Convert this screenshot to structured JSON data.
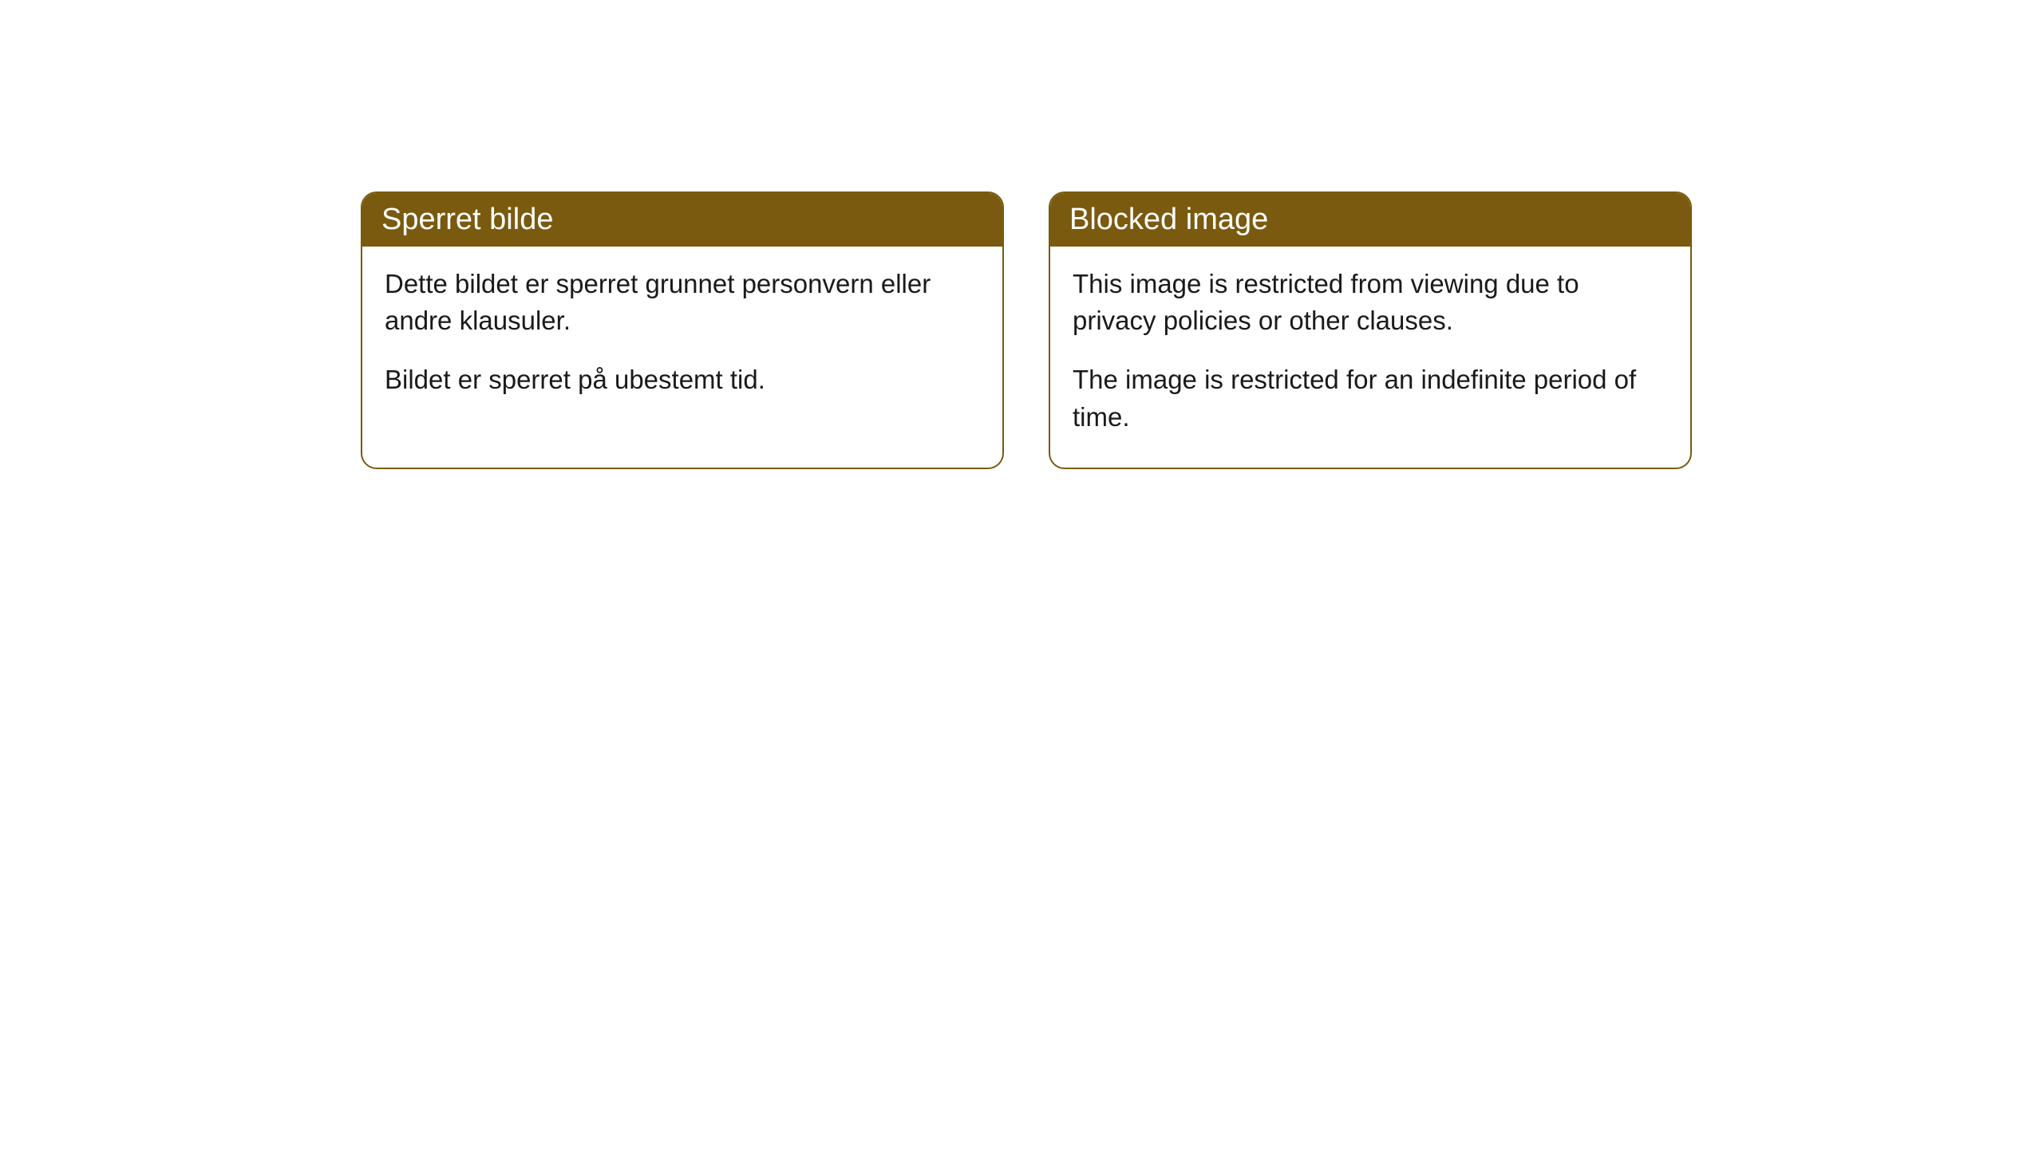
{
  "cards": [
    {
      "title": "Sperret bilde",
      "paragraph1": "Dette bildet er sperret grunnet personvern eller andre klausuler.",
      "paragraph2": "Bildet er sperret på ubestemt tid."
    },
    {
      "title": "Blocked image",
      "paragraph1": "This image is restricted from viewing due to privacy policies or other clauses.",
      "paragraph2": "The image is restricted for an indefinite period of time."
    }
  ],
  "colors": {
    "header_bg": "#7a5a0f",
    "header_text": "#ffffff",
    "body_text": "#1a1a1a",
    "card_bg": "#ffffff",
    "border": "#7a5a0f"
  }
}
